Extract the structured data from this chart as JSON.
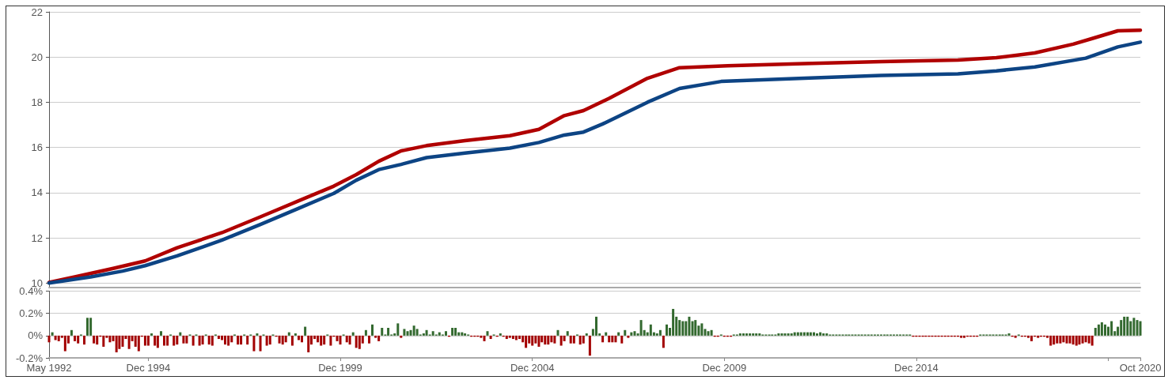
{
  "chart_data": [
    {
      "type": "line",
      "ylim": [
        9.8,
        22
      ],
      "yticks": [
        10,
        12,
        14,
        16,
        18,
        20,
        22
      ],
      "xlim": [
        "1992-05",
        "2020-10"
      ],
      "grid": "y",
      "tick_labels": "y",
      "marker": "none",
      "line_style": "solid",
      "series": [
        {
          "color": "#b00000",
          "x": [
            "1992-05",
            "1993-01",
            "1994-01",
            "1994-11",
            "1995-09",
            "1996-11",
            "1997-11",
            "1998-11",
            "1999-10",
            "2000-05",
            "2000-12",
            "2001-07",
            "2002-03",
            "2003-03",
            "2004-05",
            "2005-02",
            "2005-10",
            "2006-04",
            "2006-12",
            "2007-12",
            "2008-10",
            "2010-01",
            "2012-01",
            "2014-01",
            "2016-01",
            "2017-01",
            "2018-01",
            "2019-01",
            "2019-07",
            "2020-03",
            "2020-10"
          ],
          "values": [
            10.03,
            10.27,
            10.65,
            10.98,
            11.56,
            12.23,
            12.93,
            13.64,
            14.29,
            14.8,
            15.39,
            15.85,
            16.08,
            16.3,
            16.52,
            16.8,
            17.41,
            17.63,
            18.17,
            19.06,
            19.53,
            19.61,
            19.71,
            19.8,
            19.87,
            19.97,
            20.18,
            20.57,
            20.82,
            21.16,
            21.19
          ]
        },
        {
          "color": "#0d4484",
          "x": [
            "1992-05",
            "1993-06",
            "1994-04",
            "1994-11",
            "1995-09",
            "1996-11",
            "1997-11",
            "1998-11",
            "1999-10",
            "2000-05",
            "2000-12",
            "2001-07",
            "2002-03",
            "2003-03",
            "2004-05",
            "2005-02",
            "2005-10",
            "2006-04",
            "2006-10",
            "2007-12",
            "2008-10",
            "2009-11",
            "2012-01",
            "2014-01",
            "2016-01",
            "2017-01",
            "2018-01",
            "2019-05",
            "2020-03",
            "2020-10"
          ],
          "values": [
            10.0,
            10.27,
            10.53,
            10.77,
            11.2,
            11.9,
            12.59,
            13.31,
            13.97,
            14.55,
            15.02,
            15.25,
            15.55,
            15.75,
            15.97,
            16.22,
            16.55,
            16.68,
            17.04,
            18.0,
            18.61,
            18.92,
            19.06,
            19.19,
            19.26,
            19.39,
            19.56,
            19.95,
            20.45,
            20.66
          ]
        }
      ]
    },
    {
      "type": "bar",
      "ylim": [
        -0.2,
        0.4
      ],
      "yticks": [
        {
          "value": -0.2,
          "label": "-0.2%"
        },
        {
          "value": 0,
          "label": "0%"
        },
        {
          "value": 0.2,
          "label": "0.2%"
        },
        {
          "value": 0.4,
          "label": "0.4%"
        }
      ],
      "xlim": [
        "1992-05",
        "2020-10"
      ],
      "xticks": [
        {
          "value": "1992-05",
          "label": "May 1992"
        },
        {
          "value": "1994-12",
          "label": "Dec 1994"
        },
        {
          "value": "1999-12",
          "label": "Dec 1999"
        },
        {
          "value": "2004-12",
          "label": "Dec 2004"
        },
        {
          "value": "2009-12",
          "label": "Dec 2009"
        },
        {
          "value": "2014-12",
          "label": "Dec 2014"
        },
        {
          "value": "2019-12",
          "label": null
        },
        {
          "value": "2020-10",
          "label": "Oct 2020"
        }
      ],
      "grid": "y",
      "x": [
        "1992-05",
        "1992-06",
        "1992-07",
        "1992-08",
        "1992-09",
        "1992-10",
        "1992-11",
        "1992-12",
        "1993-01",
        "1993-02",
        "1993-03",
        "1993-04",
        "1993-05",
        "1993-06",
        "1993-07",
        "1993-08",
        "1993-09",
        "1993-10",
        "1993-11",
        "1993-12",
        "1994-01",
        "1994-02",
        "1994-03",
        "1994-04",
        "1994-05",
        "1994-06",
        "1994-07",
        "1994-08",
        "1994-09",
        "1994-10",
        "1994-11",
        "1994-12",
        "1995-01",
        "1995-02",
        "1995-03",
        "1995-04",
        "1995-05",
        "1995-06",
        "1995-07",
        "1995-08",
        "1995-09",
        "1995-10",
        "1995-11",
        "1995-12",
        "1996-01",
        "1996-02",
        "1996-03",
        "1996-04",
        "1996-05",
        "1996-06",
        "1996-07",
        "1996-08",
        "1996-09",
        "1996-10",
        "1996-11",
        "1996-12",
        "1997-01",
        "1997-02",
        "1997-03",
        "1997-04",
        "1997-05",
        "1997-06",
        "1997-07",
        "1997-08",
        "1997-09",
        "1997-10",
        "1997-11",
        "1997-12",
        "1998-01",
        "1998-02",
        "1998-03",
        "1998-04",
        "1998-05",
        "1998-06",
        "1998-07",
        "1998-08",
        "1998-09",
        "1998-10",
        "1998-11",
        "1998-12",
        "1999-01",
        "1999-02",
        "1999-03",
        "1999-04",
        "1999-05",
        "1999-06",
        "1999-07",
        "1999-08",
        "1999-09",
        "1999-10",
        "1999-11",
        "1999-12",
        "2000-01",
        "2000-02",
        "2000-03",
        "2000-04",
        "2000-05",
        "2000-06",
        "2000-07",
        "2000-08",
        "2000-09",
        "2000-10",
        "2000-11",
        "2000-12",
        "2001-01",
        "2001-02",
        "2001-03",
        "2001-04",
        "2001-05",
        "2001-06",
        "2001-07",
        "2001-08",
        "2001-09",
        "2001-10",
        "2001-11",
        "2001-12",
        "2002-01",
        "2002-02",
        "2002-03",
        "2002-04",
        "2002-05",
        "2002-06",
        "2002-07",
        "2002-08",
        "2002-09",
        "2002-10",
        "2002-11",
        "2002-12",
        "2003-01",
        "2003-02",
        "2003-03",
        "2003-04",
        "2003-05",
        "2003-06",
        "2003-07",
        "2003-08",
        "2003-09",
        "2003-10",
        "2003-11",
        "2003-12",
        "2004-01",
        "2004-02",
        "2004-03",
        "2004-04",
        "2004-05",
        "2004-06",
        "2004-07",
        "2004-08",
        "2004-09",
        "2004-10",
        "2004-11",
        "2004-12",
        "2005-01",
        "2005-02",
        "2005-03",
        "2005-04",
        "2005-05",
        "2005-06",
        "2005-07",
        "2005-08",
        "2005-09",
        "2005-10",
        "2005-11",
        "2005-12",
        "2006-01",
        "2006-02",
        "2006-03",
        "2006-04",
        "2006-05",
        "2006-06",
        "2006-07",
        "2006-08",
        "2006-09",
        "2006-10",
        "2006-11",
        "2006-12",
        "2007-01",
        "2007-02",
        "2007-03",
        "2007-04",
        "2007-05",
        "2007-06",
        "2007-07",
        "2007-08",
        "2007-09",
        "2007-10",
        "2007-11",
        "2007-12",
        "2008-01",
        "2008-02",
        "2008-03",
        "2008-04",
        "2008-05",
        "2008-06",
        "2008-07",
        "2008-08",
        "2008-09",
        "2008-10",
        "2008-11",
        "2008-12",
        "2009-01",
        "2009-02",
        "2009-03",
        "2009-04",
        "2009-05",
        "2009-06",
        "2009-07",
        "2009-08",
        "2009-09",
        "2009-10",
        "2009-11",
        "2009-12",
        "2010-01",
        "2010-02",
        "2010-03",
        "2010-04",
        "2010-05",
        "2010-06",
        "2010-07",
        "2010-08",
        "2010-09",
        "2010-10",
        "2010-11",
        "2010-12",
        "2011-01",
        "2011-02",
        "2011-03",
        "2011-04",
        "2011-05",
        "2011-06",
        "2011-07",
        "2011-08",
        "2011-09",
        "2011-10",
        "2011-11",
        "2011-12",
        "2012-01",
        "2012-02",
        "2012-03",
        "2012-04",
        "2012-05",
        "2012-06",
        "2012-07",
        "2012-08",
        "2012-09",
        "2012-10",
        "2012-11",
        "2012-12",
        "2013-01",
        "2013-02",
        "2013-03",
        "2013-04",
        "2013-05",
        "2013-06",
        "2013-07",
        "2013-08",
        "2013-09",
        "2013-10",
        "2013-11",
        "2013-12",
        "2014-01",
        "2014-02",
        "2014-03",
        "2014-04",
        "2014-05",
        "2014-06",
        "2014-07",
        "2014-08",
        "2014-09",
        "2014-10",
        "2014-11",
        "2014-12",
        "2015-01",
        "2015-02",
        "2015-03",
        "2015-04",
        "2015-05",
        "2015-06",
        "2015-07",
        "2015-08",
        "2015-09",
        "2015-10",
        "2015-11",
        "2015-12",
        "2016-01",
        "2016-02",
        "2016-03",
        "2016-04",
        "2016-05",
        "2016-06",
        "2016-07",
        "2016-08",
        "2016-09",
        "2016-10",
        "2016-11",
        "2016-12",
        "2017-01",
        "2017-02",
        "2017-03",
        "2017-04",
        "2017-05",
        "2017-06",
        "2017-07",
        "2017-08",
        "2017-09",
        "2017-10",
        "2017-11",
        "2017-12",
        "2018-01",
        "2018-02",
        "2018-03",
        "2018-04",
        "2018-05",
        "2018-06",
        "2018-07",
        "2018-08",
        "2018-09",
        "2018-10",
        "2018-11",
        "2018-12",
        "2019-01",
        "2019-02",
        "2019-03",
        "2019-04",
        "2019-05",
        "2019-06",
        "2019-07",
        "2019-08",
        "2019-09",
        "2019-10",
        "2019-11",
        "2019-12",
        "2020-01",
        "2020-02",
        "2020-03",
        "2020-04",
        "2020-05",
        "2020-06",
        "2020-07",
        "2020-08",
        "2020-09",
        "2020-10"
      ],
      "values": [
        -0.06,
        0.03,
        -0.04,
        -0.05,
        -0.02,
        -0.14,
        -0.07,
        0.05,
        -0.05,
        -0.07,
        0.01,
        -0.08,
        0.16,
        0.16,
        -0.07,
        -0.08,
        -0.01,
        -0.1,
        -0.02,
        -0.06,
        -0.05,
        -0.15,
        -0.12,
        -0.1,
        -0.03,
        -0.12,
        -0.05,
        -0.1,
        -0.14,
        -0.01,
        -0.09,
        -0.09,
        0.02,
        -0.09,
        -0.11,
        0.04,
        -0.09,
        -0.09,
        0.01,
        -0.09,
        -0.08,
        0.03,
        -0.07,
        -0.07,
        0.01,
        -0.09,
        0.01,
        -0.09,
        -0.08,
        0.01,
        -0.08,
        -0.09,
        0.01,
        -0.03,
        -0.04,
        -0.08,
        -0.09,
        -0.06,
        0.01,
        -0.08,
        -0.08,
        0.01,
        -0.08,
        0.01,
        -0.14,
        0.02,
        -0.14,
        0.01,
        -0.09,
        -0.08,
        0.01,
        -0.01,
        -0.07,
        -0.08,
        -0.06,
        0.03,
        -0.09,
        0.02,
        -0.04,
        -0.06,
        0.08,
        -0.15,
        -0.08,
        -0.03,
        -0.06,
        -0.09,
        -0.08,
        0.01,
        -0.09,
        -0.01,
        -0.05,
        -0.08,
        0.01,
        -0.06,
        -0.08,
        0.03,
        -0.11,
        -0.12,
        -0.07,
        0.05,
        -0.07,
        0.1,
        -0.02,
        -0.05,
        0.07,
        0.01,
        0.07,
        0.01,
        0.02,
        0.11,
        -0.02,
        0.06,
        0.04,
        0.05,
        0.09,
        0.06,
        0.01,
        0.02,
        0.05,
        0.01,
        0.04,
        0.01,
        0.03,
        0.01,
        0.04,
        -0.01,
        0.07,
        0.07,
        0.03,
        0.03,
        0.02,
        0.01,
        -0.01,
        -0.01,
        -0.01,
        -0.02,
        -0.05,
        0.04,
        -0.03,
        0.01,
        -0.01,
        0.02,
        -0.01,
        -0.03,
        -0.02,
        -0.03,
        -0.04,
        -0.03,
        -0.06,
        -0.11,
        -0.07,
        -0.09,
        -0.07,
        -0.1,
        -0.06,
        -0.08,
        -0.08,
        -0.06,
        -0.07,
        0.05,
        -0.09,
        -0.05,
        0.04,
        -0.07,
        -0.07,
        0.01,
        -0.08,
        -0.07,
        0.02,
        -0.18,
        0.06,
        0.17,
        0.02,
        -0.06,
        0.03,
        -0.06,
        -0.06,
        -0.06,
        0.03,
        -0.07,
        0.05,
        -0.02,
        0.03,
        0.04,
        0.02,
        0.14,
        0.05,
        0.03,
        0.1,
        0.03,
        0.02,
        0.05,
        -0.11,
        0.1,
        0.07,
        0.24,
        0.17,
        0.14,
        0.13,
        0.13,
        0.17,
        0.13,
        0.14,
        0.09,
        0.11,
        0.06,
        0.04,
        0.05,
        -0.01,
        -0.01,
        0.01,
        -0.01,
        -0.01,
        -0.01,
        0.01,
        0.01,
        0.02,
        0.02,
        0.02,
        0.02,
        0.02,
        0.02,
        0.02,
        0.01,
        0.01,
        0.01,
        0.01,
        0.01,
        0.02,
        0.02,
        0.02,
        0.02,
        0.02,
        0.03,
        0.03,
        0.03,
        0.03,
        0.03,
        0.03,
        0.03,
        0.02,
        0.03,
        0.02,
        0.02,
        0.01,
        0.01,
        0.01,
        0.01,
        0.01,
        0.01,
        0.01,
        0.01,
        0.01,
        0.01,
        0.01,
        0.01,
        0.01,
        0.01,
        0.01,
        0.01,
        0.01,
        0.01,
        0.01,
        0.01,
        0.01,
        0.01,
        0.01,
        0.01,
        0.01,
        0.01,
        -0.01,
        -0.01,
        -0.01,
        -0.01,
        -0.01,
        -0.01,
        -0.01,
        -0.01,
        -0.01,
        -0.01,
        -0.01,
        -0.01,
        -0.01,
        -0.01,
        -0.01,
        -0.02,
        -0.02,
        -0.01,
        -0.01,
        -0.01,
        -0.01,
        0.01,
        0.01,
        0.01,
        0.01,
        0.01,
        0.01,
        0.01,
        0.01,
        0.01,
        0.02,
        -0.01,
        -0.02,
        0.01,
        -0.01,
        -0.01,
        -0.02,
        -0.05,
        -0.01,
        -0.02,
        -0.01,
        -0.01,
        -0.02,
        -0.09,
        -0.08,
        -0.07,
        -0.07,
        -0.06,
        -0.07,
        -0.07,
        -0.08,
        -0.09,
        -0.08,
        -0.07,
        -0.06,
        -0.07,
        -0.09,
        0.07,
        0.1,
        0.12,
        0.1,
        0.08,
        0.13,
        0.04,
        0.08,
        0.14,
        0.17,
        0.17,
        0.13,
        0.16,
        0.14,
        0.13
      ],
      "colors": [
        "#a30000",
        "#33692f",
        "#a30000",
        "#a30000",
        "#a30000",
        "#a30000",
        "#a30000",
        "#33692f",
        "#a30000",
        "#a30000",
        "#33692f",
        "#a30000",
        "#33692f",
        "#33692f",
        "#a30000",
        "#a30000",
        "#a30000",
        "#a30000",
        "#a30000",
        "#a30000",
        "#a30000",
        "#a30000",
        "#a30000",
        "#a30000",
        "#a30000",
        "#a30000",
        "#a30000",
        "#a30000",
        "#a30000",
        "#a30000",
        "#a30000",
        "#a30000",
        "#33692f",
        "#a30000",
        "#a30000",
        "#33692f",
        "#a30000",
        "#a30000",
        "#33692f",
        "#a30000",
        "#a30000",
        "#33692f",
        "#a30000",
        "#a30000",
        "#33692f",
        "#a30000",
        "#33692f",
        "#a30000",
        "#a30000",
        "#33692f",
        "#a30000",
        "#a30000",
        "#33692f",
        "#a30000",
        "#a30000",
        "#a30000",
        "#a30000",
        "#a30000",
        "#33692f",
        "#a30000",
        "#a30000",
        "#33692f",
        "#a30000",
        "#33692f",
        "#a30000",
        "#33692f",
        "#a30000",
        "#33692f",
        "#a30000",
        "#a30000",
        "#33692f",
        "#a30000",
        "#a30000",
        "#a30000",
        "#a30000",
        "#33692f",
        "#a30000",
        "#33692f",
        "#a30000",
        "#a30000",
        "#33692f",
        "#a30000",
        "#a30000",
        "#a30000",
        "#a30000",
        "#a30000",
        "#a30000",
        "#33692f",
        "#a30000",
        "#a30000",
        "#a30000",
        "#a30000",
        "#33692f",
        "#a30000",
        "#a30000",
        "#33692f",
        "#a30000",
        "#a30000",
        "#a30000",
        "#33692f",
        "#a30000",
        "#33692f",
        "#a30000",
        "#a30000",
        "#33692f",
        "#33692f",
        "#33692f",
        "#33692f",
        "#33692f",
        "#33692f",
        "#a30000",
        "#33692f",
        "#33692f",
        "#33692f",
        "#33692f",
        "#33692f",
        "#33692f",
        "#33692f",
        "#33692f",
        "#33692f",
        "#33692f",
        "#33692f",
        "#33692f",
        "#33692f",
        "#33692f",
        "#a30000",
        "#33692f",
        "#33692f",
        "#33692f",
        "#33692f",
        "#33692f",
        "#33692f",
        "#a30000",
        "#a30000",
        "#a30000",
        "#a30000",
        "#a30000",
        "#33692f",
        "#a30000",
        "#33692f",
        "#a30000",
        "#33692f",
        "#a30000",
        "#a30000",
        "#a30000",
        "#a30000",
        "#a30000",
        "#a30000",
        "#a30000",
        "#a30000",
        "#a30000",
        "#a30000",
        "#a30000",
        "#a30000",
        "#a30000",
        "#a30000",
        "#a30000",
        "#a30000",
        "#a30000",
        "#33692f",
        "#a30000",
        "#a30000",
        "#33692f",
        "#a30000",
        "#a30000",
        "#33692f",
        "#a30000",
        "#a30000",
        "#33692f",
        "#a30000",
        "#33692f",
        "#33692f",
        "#33692f",
        "#a30000",
        "#33692f",
        "#a30000",
        "#a30000",
        "#a30000",
        "#33692f",
        "#a30000",
        "#33692f",
        "#a30000",
        "#33692f",
        "#33692f",
        "#33692f",
        "#33692f",
        "#33692f",
        "#33692f",
        "#33692f",
        "#33692f",
        "#33692f",
        "#33692f",
        "#a30000",
        "#33692f",
        "#33692f",
        "#33692f",
        "#33692f",
        "#33692f",
        "#33692f",
        "#33692f",
        "#33692f",
        "#33692f",
        "#33692f",
        "#33692f",
        "#33692f",
        "#33692f",
        "#33692f",
        "#33692f",
        "#a30000",
        "#a30000",
        "#33692f",
        "#a30000",
        "#a30000",
        "#a30000",
        "#33692f",
        "#33692f",
        "#33692f",
        "#33692f",
        "#33692f",
        "#33692f",
        "#33692f",
        "#33692f",
        "#33692f",
        "#33692f",
        "#33692f",
        "#33692f",
        "#33692f",
        "#33692f",
        "#33692f",
        "#33692f",
        "#33692f",
        "#33692f",
        "#33692f",
        "#33692f",
        "#33692f",
        "#33692f",
        "#33692f",
        "#33692f",
        "#33692f",
        "#33692f",
        "#33692f",
        "#33692f",
        "#33692f",
        "#33692f",
        "#33692f",
        "#33692f",
        "#33692f",
        "#33692f",
        "#33692f",
        "#33692f",
        "#33692f",
        "#33692f",
        "#33692f",
        "#33692f",
        "#33692f",
        "#33692f",
        "#33692f",
        "#33692f",
        "#33692f",
        "#33692f",
        "#33692f",
        "#33692f",
        "#33692f",
        "#33692f",
        "#33692f",
        "#33692f",
        "#33692f",
        "#33692f",
        "#33692f",
        "#33692f",
        "#a30000",
        "#a30000",
        "#a30000",
        "#a30000",
        "#a30000",
        "#a30000",
        "#a30000",
        "#a30000",
        "#a30000",
        "#a30000",
        "#a30000",
        "#a30000",
        "#a30000",
        "#a30000",
        "#a30000",
        "#a30000",
        "#a30000",
        "#a30000",
        "#a30000",
        "#a30000",
        "#a30000",
        "#33692f",
        "#33692f",
        "#33692f",
        "#33692f",
        "#33692f",
        "#33692f",
        "#33692f",
        "#33692f",
        "#33692f",
        "#33692f",
        "#a30000",
        "#a30000",
        "#33692f",
        "#a30000",
        "#a30000",
        "#a30000",
        "#a30000",
        "#a30000",
        "#a30000",
        "#a30000",
        "#a30000",
        "#a30000",
        "#a30000",
        "#a30000",
        "#a30000",
        "#a30000",
        "#a30000",
        "#a30000",
        "#a30000",
        "#a30000",
        "#a30000",
        "#a30000",
        "#a30000",
        "#a30000",
        "#a30000",
        "#a30000",
        "#33692f",
        "#33692f",
        "#33692f",
        "#33692f",
        "#33692f",
        "#33692f",
        "#33692f",
        "#33692f",
        "#33692f",
        "#33692f",
        "#33692f",
        "#33692f",
        "#33692f",
        "#33692f",
        "#33692f"
      ]
    }
  ]
}
